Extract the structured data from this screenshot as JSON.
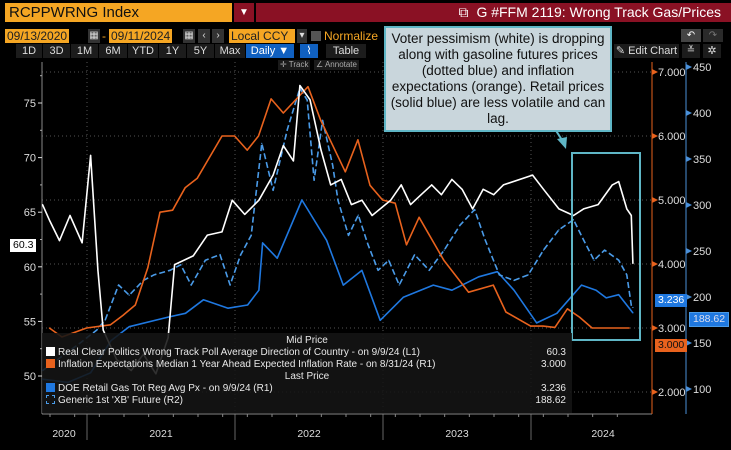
{
  "header": {
    "ticker": "RCPPWRNG Index",
    "title": "G #FFM 2119: Wrong Track Gas/Prices",
    "start_date": "09/13/2020",
    "end_date": "09/11/2024",
    "date_sep": "-",
    "currency": "Local CCY",
    "normalize_label": "Normalize",
    "periods": [
      "1D",
      "3D",
      "1M",
      "6M",
      "YTD",
      "1Y",
      "5Y",
      "Max"
    ],
    "frequency": "Daily ▼",
    "table_label": "Table",
    "edit_chart": "Edit Chart",
    "track_label": "Track",
    "annotate_label": "Annotate",
    "undo_icon": "undo-icon",
    "redo_icon": "redo-icon",
    "colors": {
      "ticker_bg": "#f5a623",
      "title_bg": "#8a1124",
      "active": "#1060c0"
    }
  },
  "annotation": {
    "text": "Voter pessimism (white) is dropping along with gasoline futures prices (dotted blue) and inflation expectations (orange). Retail prices (solid blue) are less volatile and can lag.",
    "highlight_color": "#5fb6c6"
  },
  "legend": {
    "mid_price": "Mid Price",
    "last_price": "Last Price",
    "items": [
      {
        "label": "Real Clear Politics Wrong Track Poll Average Direction of Country -  on 9/9/24  (L1)",
        "value": "60.3"
      },
      {
        "label": "Inflation Expectations Median 1 Year Ahead Expected Inflation Rate -  on 8/31/24  (R1)",
        "value": "3.000"
      },
      {
        "label": "DOE Retail Gas Tot Reg Avg Px -  on 9/9/24  (R1)",
        "value": "3.236"
      },
      {
        "label": "Generic 1st 'XB' Future  (R2)",
        "value": "188.62"
      }
    ]
  },
  "chart_data": {
    "type": "line",
    "x_range": [
      "2020-09-13",
      "2024-09-11"
    ],
    "x_tick_labels": [
      "2020",
      "2021",
      "2022",
      "2023",
      "2024"
    ],
    "grid": true,
    "legend_placement": "bottom-left",
    "axes": {
      "L1": {
        "range": [
          47.5,
          78
        ],
        "ticks": [
          50,
          55,
          60,
          65,
          70,
          75
        ],
        "tick_labels": [
          "50",
          "55",
          "60",
          "65",
          "70",
          "75"
        ]
      },
      "R1": {
        "range": [
          1.6,
          7.4
        ],
        "ticks": [
          2,
          3,
          4,
          5,
          6,
          7
        ],
        "tick_labels": [
          "2.000",
          "3.000",
          "4.000",
          "5.000",
          "6.000",
          "7.000"
        ],
        "color": "#e8621d"
      },
      "R2": {
        "range": [
          80,
          455
        ],
        "ticks": [
          100,
          150,
          200,
          250,
          300,
          350,
          400,
          450
        ],
        "tick_labels": [
          "100",
          "150",
          "200",
          "250",
          "300",
          "350",
          "400",
          "450"
        ],
        "color": "#4a90d9"
      }
    },
    "series": [
      {
        "name": "Real Clear Politics Wrong Track Poll Average Direction of Country",
        "axis": "L1",
        "color": "#ffffff",
        "style": "solid",
        "last": "60.3",
        "points": [
          [
            "2020-09-13",
            65.7
          ],
          [
            "2020-10-01",
            64.2
          ],
          [
            "2020-10-25",
            62.4
          ],
          [
            "2020-11-20",
            64.7
          ],
          [
            "2020-12-20",
            62.2
          ],
          [
            "2021-01-10",
            70.2
          ],
          [
            "2021-01-28",
            59.7
          ],
          [
            "2021-02-10",
            54.2
          ],
          [
            "2021-03-15",
            51.5
          ],
          [
            "2021-04-20",
            50.5
          ],
          [
            "2021-05-20",
            52.0
          ],
          [
            "2021-06-20",
            50.2
          ],
          [
            "2021-07-20",
            53.5
          ],
          [
            "2021-08-05",
            60.2
          ],
          [
            "2021-09-20",
            61.0
          ],
          [
            "2021-10-25",
            62.9
          ],
          [
            "2021-11-30",
            63.2
          ],
          [
            "2021-12-25",
            66.1
          ],
          [
            "2022-01-25",
            64.8
          ],
          [
            "2022-03-01",
            66.1
          ],
          [
            "2022-04-05",
            68.4
          ],
          [
            "2022-04-30",
            71.1
          ],
          [
            "2022-05-25",
            69.7
          ],
          [
            "2022-06-10",
            76.6
          ],
          [
            "2022-07-05",
            75.3
          ],
          [
            "2022-08-01",
            70.7
          ],
          [
            "2022-08-25",
            67.5
          ],
          [
            "2022-09-20",
            68.0
          ],
          [
            "2022-10-15",
            65.7
          ],
          [
            "2022-11-10",
            66.1
          ],
          [
            "2022-12-05",
            64.7
          ],
          [
            "2023-01-20",
            66.1
          ],
          [
            "2023-02-15",
            67.5
          ],
          [
            "2023-03-10",
            65.7
          ],
          [
            "2023-04-05",
            66.6
          ],
          [
            "2023-05-01",
            67.5
          ],
          [
            "2023-05-25",
            66.6
          ],
          [
            "2023-06-20",
            68.0
          ],
          [
            "2023-07-15",
            67.1
          ],
          [
            "2023-08-10",
            65.3
          ],
          [
            "2023-09-05",
            67.1
          ],
          [
            "2023-10-01",
            66.6
          ],
          [
            "2023-10-25",
            67.5
          ],
          [
            "2024-01-05",
            68.4
          ],
          [
            "2024-02-01",
            67.1
          ],
          [
            "2024-03-10",
            65.3
          ],
          [
            "2024-04-15",
            64.7
          ],
          [
            "2024-05-10",
            65.3
          ],
          [
            "2024-06-15",
            65.7
          ],
          [
            "2024-07-20",
            67.5
          ],
          [
            "2024-08-05",
            67.8
          ],
          [
            "2024-08-25",
            65.3
          ],
          [
            "2024-09-05",
            64.7
          ],
          [
            "2024-09-09",
            60.3
          ]
        ]
      },
      {
        "name": "Inflation Expectations Median 1 Year Ahead Expected Inflation Rate",
        "axis": "R1",
        "color": "#e8621d",
        "style": "solid",
        "last": "3.000",
        "points": [
          [
            "2020-09-30",
            3.0
          ],
          [
            "2020-10-31",
            2.86
          ],
          [
            "2020-12-31",
            3.0
          ],
          [
            "2021-02-28",
            3.05
          ],
          [
            "2021-03-31",
            3.2
          ],
          [
            "2021-04-30",
            3.36
          ],
          [
            "2021-05-31",
            3.94
          ],
          [
            "2021-06-30",
            4.81
          ],
          [
            "2021-07-31",
            4.84
          ],
          [
            "2021-08-31",
            5.19
          ],
          [
            "2021-09-30",
            5.34
          ],
          [
            "2021-11-30",
            6.0
          ],
          [
            "2021-12-31",
            6.0
          ],
          [
            "2022-01-31",
            5.78
          ],
          [
            "2022-02-28",
            6.0
          ],
          [
            "2022-03-31",
            6.58
          ],
          [
            "2022-04-30",
            6.36
          ],
          [
            "2022-06-30",
            6.77
          ],
          [
            "2022-07-31",
            6.25
          ],
          [
            "2022-09-30",
            5.44
          ],
          [
            "2022-10-31",
            5.94
          ],
          [
            "2022-11-30",
            5.23
          ],
          [
            "2022-12-31",
            5.0
          ],
          [
            "2023-01-31",
            4.95
          ],
          [
            "2023-02-28",
            4.3
          ],
          [
            "2023-03-31",
            4.73
          ],
          [
            "2023-05-31",
            4.06
          ],
          [
            "2023-07-31",
            3.56
          ],
          [
            "2023-09-30",
            3.67
          ],
          [
            "2023-10-31",
            3.25
          ],
          [
            "2023-12-31",
            3.03
          ],
          [
            "2024-01-31",
            3.03
          ],
          [
            "2024-02-29",
            3.01
          ],
          [
            "2024-03-31",
            3.3
          ],
          [
            "2024-04-30",
            3.17
          ],
          [
            "2024-05-31",
            3.0
          ],
          [
            "2024-08-31",
            3.0
          ]
        ]
      },
      {
        "name": "DOE Retail Gas Tot Reg Avg Px",
        "axis": "R1",
        "color": "#1f78e0",
        "style": "solid",
        "last": "3.236",
        "points": [
          [
            "2020-09-13",
            2.2
          ],
          [
            "2020-11-15",
            2.15
          ],
          [
            "2021-01-10",
            2.3
          ],
          [
            "2021-03-01",
            2.8
          ],
          [
            "2021-04-15",
            3.02
          ],
          [
            "2021-07-20",
            3.17
          ],
          [
            "2021-09-01",
            3.23
          ],
          [
            "2021-10-15",
            3.44
          ],
          [
            "2021-12-15",
            3.31
          ],
          [
            "2022-02-01",
            3.36
          ],
          [
            "2022-03-01",
            3.59
          ],
          [
            "2022-03-10",
            4.33
          ],
          [
            "2022-04-15",
            4.09
          ],
          [
            "2022-06-15",
            5.0
          ],
          [
            "2022-08-15",
            4.37
          ],
          [
            "2022-09-25",
            3.67
          ],
          [
            "2022-11-10",
            3.9
          ],
          [
            "2022-12-25",
            3.12
          ],
          [
            "2023-02-20",
            3.48
          ],
          [
            "2023-05-05",
            3.67
          ],
          [
            "2023-06-20",
            3.59
          ],
          [
            "2023-08-25",
            3.8
          ],
          [
            "2023-10-10",
            3.88
          ],
          [
            "2023-11-20",
            3.59
          ],
          [
            "2024-01-15",
            3.08
          ],
          [
            "2024-03-05",
            3.23
          ],
          [
            "2024-05-05",
            3.67
          ],
          [
            "2024-06-10",
            3.59
          ],
          [
            "2024-07-05",
            3.47
          ],
          [
            "2024-08-05",
            3.52
          ],
          [
            "2024-09-09",
            3.236
          ]
        ]
      },
      {
        "name": "Generic 1st 'XB' Future",
        "axis": "R2",
        "color": "#4a9be8",
        "style": "dashed",
        "last": "188.62",
        "points": [
          [
            "2020-09-13",
            120
          ],
          [
            "2020-12-15",
            150
          ],
          [
            "2021-01-25",
            164
          ],
          [
            "2021-02-15",
            175
          ],
          [
            "2021-03-20",
            213
          ],
          [
            "2021-04-15",
            202
          ],
          [
            "2021-05-20",
            218
          ],
          [
            "2021-06-15",
            224
          ],
          [
            "2021-07-25",
            229
          ],
          [
            "2021-08-20",
            235
          ],
          [
            "2021-09-15",
            213
          ],
          [
            "2021-10-20",
            240
          ],
          [
            "2021-11-25",
            246
          ],
          [
            "2021-12-20",
            213
          ],
          [
            "2022-01-15",
            246
          ],
          [
            "2022-02-10",
            267
          ],
          [
            "2022-03-08",
            367
          ],
          [
            "2022-04-05",
            316
          ],
          [
            "2022-05-10",
            382
          ],
          [
            "2022-06-10",
            427
          ],
          [
            "2022-06-28",
            414
          ],
          [
            "2022-07-15",
            327
          ],
          [
            "2022-08-05",
            392
          ],
          [
            "2022-08-30",
            343
          ],
          [
            "2022-09-12",
            305
          ],
          [
            "2022-10-08",
            267
          ],
          [
            "2022-11-01",
            289
          ],
          [
            "2022-11-25",
            257
          ],
          [
            "2022-12-20",
            229
          ],
          [
            "2023-01-15",
            240
          ],
          [
            "2023-02-10",
            213
          ],
          [
            "2023-03-20",
            246
          ],
          [
            "2023-04-25",
            229
          ],
          [
            "2023-06-01",
            251
          ],
          [
            "2023-07-10",
            278
          ],
          [
            "2023-08-15",
            295
          ],
          [
            "2023-09-10",
            262
          ],
          [
            "2023-10-15",
            224
          ],
          [
            "2023-11-20",
            218
          ],
          [
            "2023-12-25",
            224
          ],
          [
            "2024-02-01",
            251
          ],
          [
            "2024-03-10",
            273
          ],
          [
            "2024-04-15",
            284
          ],
          [
            "2024-05-10",
            262
          ],
          [
            "2024-06-05",
            240
          ],
          [
            "2024-07-01",
            251
          ],
          [
            "2024-08-05",
            240
          ],
          [
            "2024-08-25",
            224
          ],
          [
            "2024-09-05",
            191
          ],
          [
            "2024-09-09",
            188.62
          ]
        ]
      }
    ]
  }
}
